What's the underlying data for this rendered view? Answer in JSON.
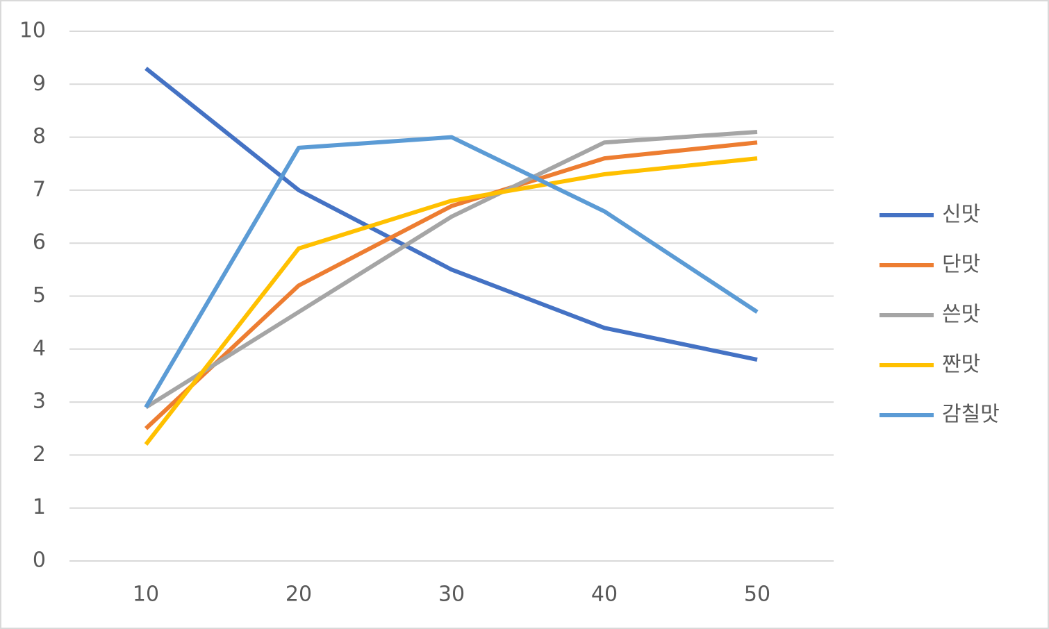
{
  "chart_data": {
    "type": "line",
    "categories": [
      "10",
      "20",
      "30",
      "40",
      "50"
    ],
    "series": [
      {
        "name": "신맛",
        "color": "#4472c4",
        "values": [
          9.3,
          7.0,
          5.5,
          4.4,
          3.8
        ]
      },
      {
        "name": "단맛",
        "color": "#ed7d31",
        "values": [
          2.5,
          5.2,
          6.7,
          7.6,
          7.9
        ]
      },
      {
        "name": "쓴맛",
        "color": "#a5a5a5",
        "values": [
          2.9,
          4.7,
          6.5,
          7.9,
          8.1
        ]
      },
      {
        "name": "짠맛",
        "color": "#ffc000",
        "values": [
          2.2,
          5.9,
          6.8,
          7.3,
          7.6
        ]
      },
      {
        "name": "감칠맛",
        "color": "#5b9bd5",
        "values": [
          2.9,
          7.8,
          8.0,
          6.6,
          4.7
        ]
      }
    ],
    "ylim": [
      0,
      10
    ],
    "yticks": [
      0,
      1,
      2,
      3,
      4,
      5,
      6,
      7,
      8,
      9,
      10
    ],
    "grid": true,
    "legend": "right"
  }
}
